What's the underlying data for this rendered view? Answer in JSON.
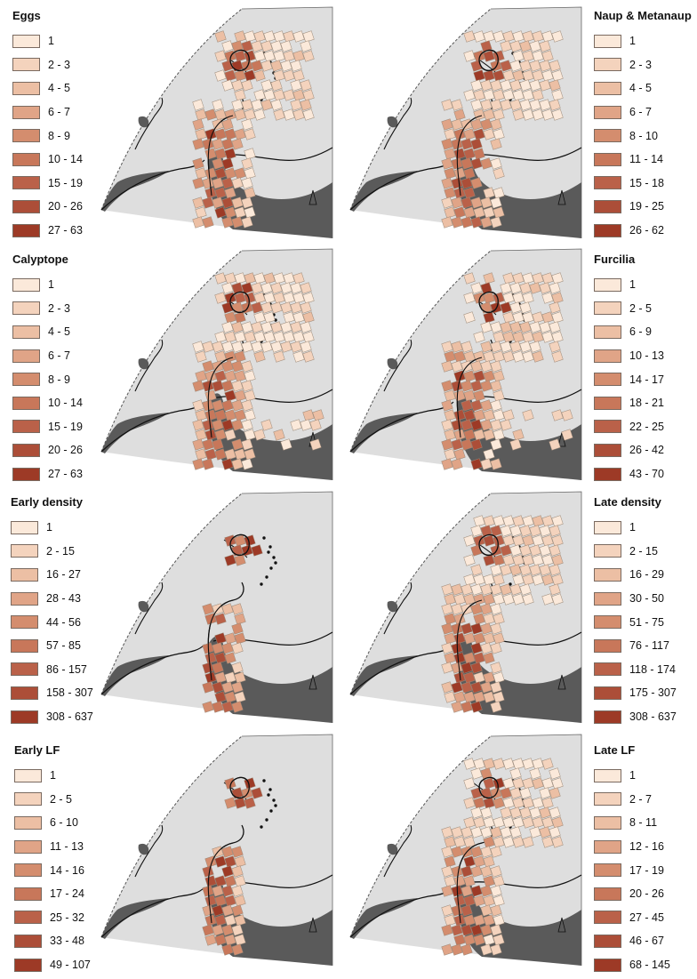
{
  "colors": {
    "scale": [
      "#fbe9da",
      "#f4d3bd",
      "#ecbfa4",
      "#e0a487",
      "#d48d6e",
      "#c8775a",
      "#ba6149",
      "#ac4e38",
      "#9d3a26"
    ],
    "ocean": "#dedede",
    "land": "#5a5a5a",
    "outline": "#111111",
    "cell_border": "#9a8878"
  },
  "panels": [
    {
      "id": "eggs",
      "title": "Eggs",
      "ranges": [
        "1",
        "2 - 3",
        "4 - 5",
        "6 - 7",
        "8 - 9",
        "10 - 14",
        "15 - 19",
        "20 - 26",
        "27 - 63"
      ],
      "pattern": "full"
    },
    {
      "id": "naup",
      "title": "Naup & Metanaup",
      "ranges": [
        "1",
        "2 - 3",
        "4 - 5",
        "6 - 7",
        "8 - 10",
        "11 - 14",
        "15 - 18",
        "19 - 25",
        "26 - 62"
      ],
      "pattern": "full"
    },
    {
      "id": "calyptope",
      "title": "Calyptope",
      "ranges": [
        "1",
        "2 - 3",
        "4 - 5",
        "6 - 7",
        "8 - 9",
        "10 - 14",
        "15 - 19",
        "20 - 26",
        "27 - 63"
      ],
      "pattern": "wide"
    },
    {
      "id": "furcilia",
      "title": "Furcilia",
      "ranges": [
        "1",
        "2 - 5",
        "6 - 9",
        "10 - 13",
        "14 - 17",
        "18 - 21",
        "22 - 25",
        "26 - 42",
        "43 - 70"
      ],
      "pattern": "wide"
    },
    {
      "id": "early_density",
      "title": "Early density",
      "ranges": [
        "1",
        "2 - 15",
        "16 - 27",
        "28 - 43",
        "44 - 56",
        "57 - 85",
        "86 - 157",
        "158 - 307",
        "308 - 637"
      ],
      "pattern": "sparse"
    },
    {
      "id": "late_density",
      "title": "Late density",
      "ranges": [
        "1",
        "2 - 15",
        "16 - 29",
        "30 - 50",
        "51 - 75",
        "76 - 117",
        "118 - 174",
        "175 - 307",
        "308 - 637"
      ],
      "pattern": "full"
    },
    {
      "id": "early_lf",
      "title": "Early LF",
      "ranges": [
        "1",
        "2 - 5",
        "6 - 10",
        "11 - 13",
        "14 - 16",
        "17 - 24",
        "25 - 32",
        "33 - 48",
        "49 - 107"
      ],
      "pattern": "sparse"
    },
    {
      "id": "late_lf",
      "title": "Late LF",
      "ranges": [
        "1",
        "2 - 7",
        "8 - 11",
        "12 - 16",
        "17 - 19",
        "20 - 26",
        "27 - 45",
        "46 - 67",
        "68 - 145"
      ],
      "pattern": "full"
    }
  ]
}
